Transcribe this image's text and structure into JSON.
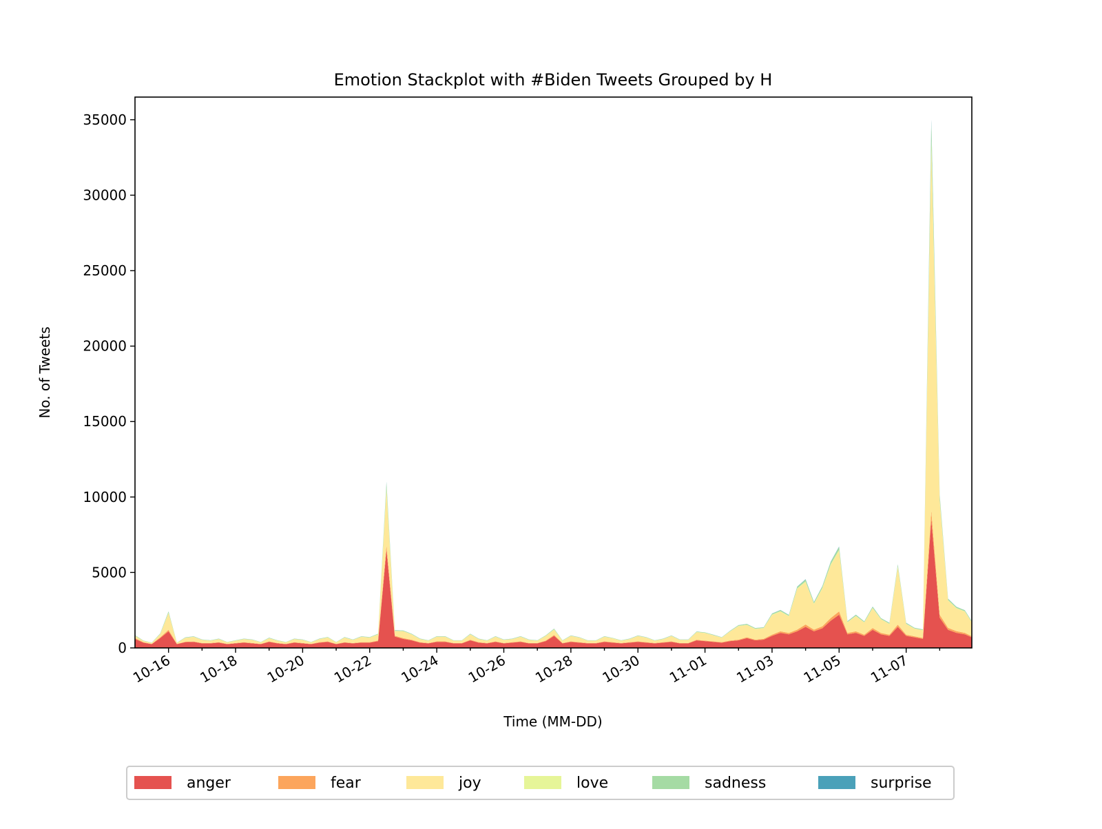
{
  "chart_data": {
    "type": "area",
    "stacked": true,
    "title": "Emotion Stackplot with #Biden Tweets Grouped by H",
    "xlabel": "Time (MM-DD)",
    "ylabel": "No. of Tweets",
    "xlim": [
      "10-15 00:00",
      "11-08 23:00"
    ],
    "ylim": [
      0,
      36500
    ],
    "grid": false,
    "legend_position": "bottom",
    "x_ticks": [
      "10-16",
      "10-18",
      "10-20",
      "10-22",
      "10-24",
      "10-26",
      "10-28",
      "10-30",
      "11-01",
      "11-03",
      "11-05",
      "11-07"
    ],
    "y_ticks": [
      0,
      5000,
      10000,
      15000,
      20000,
      25000,
      30000,
      35000
    ],
    "y_tick_labels": [
      "0",
      "5000",
      "10000",
      "15000",
      "20000",
      "25000",
      "30000",
      "35000"
    ],
    "x": [
      "10-15 00:00",
      "10-15 06:00",
      "10-15 12:00",
      "10-15 18:00",
      "10-16 00:00",
      "10-16 06:00",
      "10-16 12:00",
      "10-16 18:00",
      "10-17 00:00",
      "10-17 06:00",
      "10-17 12:00",
      "10-17 18:00",
      "10-18 00:00",
      "10-18 06:00",
      "10-18 12:00",
      "10-18 18:00",
      "10-19 00:00",
      "10-19 06:00",
      "10-19 12:00",
      "10-19 18:00",
      "10-20 00:00",
      "10-20 06:00",
      "10-20 12:00",
      "10-20 18:00",
      "10-21 00:00",
      "10-21 06:00",
      "10-21 12:00",
      "10-21 18:00",
      "10-22 00:00",
      "10-22 06:00",
      "10-22 12:00",
      "10-22 18:00",
      "10-23 00:00",
      "10-23 06:00",
      "10-23 12:00",
      "10-23 18:00",
      "10-24 00:00",
      "10-24 06:00",
      "10-24 12:00",
      "10-24 18:00",
      "10-25 00:00",
      "10-25 06:00",
      "10-25 12:00",
      "10-25 18:00",
      "10-26 00:00",
      "10-26 06:00",
      "10-26 12:00",
      "10-26 18:00",
      "10-27 00:00",
      "10-27 06:00",
      "10-27 12:00",
      "10-27 18:00",
      "10-28 00:00",
      "10-28 06:00",
      "10-28 12:00",
      "10-28 18:00",
      "10-29 00:00",
      "10-29 06:00",
      "10-29 12:00",
      "10-29 18:00",
      "10-30 00:00",
      "10-30 06:00",
      "10-30 12:00",
      "10-30 18:00",
      "10-31 00:00",
      "10-31 06:00",
      "10-31 12:00",
      "10-31 18:00",
      "11-01 00:00",
      "11-01 06:00",
      "11-01 12:00",
      "11-01 18:00",
      "11-02 00:00",
      "11-02 06:00",
      "11-02 12:00",
      "11-02 18:00",
      "11-03 00:00",
      "11-03 06:00",
      "11-03 12:00",
      "11-03 18:00",
      "11-04 00:00",
      "11-04 06:00",
      "11-04 12:00",
      "11-04 18:00",
      "11-05 00:00",
      "11-05 06:00",
      "11-05 12:00",
      "11-05 18:00",
      "11-06 00:00",
      "11-06 06:00",
      "11-06 12:00",
      "11-06 18:00",
      "11-07 00:00",
      "11-07 06:00",
      "11-07 12:00",
      "11-07 18:00",
      "11-08 00:00",
      "11-08 06:00",
      "11-08 12:00",
      "11-08 18:00",
      "11-08 23:00"
    ],
    "series": [
      {
        "name": "anger",
        "color": "#e5524f",
        "values": [
          600,
          350,
          250,
          650,
          1100,
          250,
          380,
          400,
          300,
          300,
          350,
          250,
          300,
          350,
          300,
          250,
          400,
          300,
          250,
          350,
          300,
          250,
          350,
          400,
          250,
          350,
          300,
          350,
          350,
          450,
          6500,
          750,
          600,
          500,
          350,
          300,
          400,
          400,
          300,
          300,
          500,
          350,
          300,
          400,
          300,
          350,
          400,
          300,
          300,
          450,
          800,
          300,
          400,
          350,
          300,
          300,
          400,
          350,
          300,
          350,
          400,
          350,
          300,
          350,
          400,
          300,
          300,
          500,
          450,
          400,
          350,
          450,
          500,
          650,
          500,
          550,
          800,
          1000,
          900,
          1100,
          1400,
          1100,
          1300,
          1800,
          2200,
          900,
          1000,
          800,
          1200,
          900,
          800,
          1400,
          800,
          700,
          600,
          8500,
          2000,
          1200,
          1000,
          900,
          700
        ]
      },
      {
        "name": "fear",
        "color": "#fca55c",
        "values": [
          50,
          30,
          20,
          50,
          100,
          20,
          30,
          30,
          25,
          25,
          30,
          20,
          25,
          30,
          25,
          20,
          35,
          25,
          20,
          30,
          25,
          20,
          30,
          35,
          20,
          30,
          25,
          30,
          30,
          40,
          300,
          60,
          50,
          40,
          30,
          25,
          35,
          35,
          25,
          25,
          40,
          30,
          25,
          35,
          25,
          30,
          35,
          25,
          25,
          35,
          60,
          25,
          35,
          30,
          25,
          25,
          35,
          30,
          25,
          30,
          35,
          30,
          25,
          30,
          35,
          25,
          25,
          40,
          35,
          35,
          30,
          40,
          45,
          60,
          50,
          55,
          80,
          100,
          90,
          110,
          150,
          110,
          130,
          180,
          220,
          90,
          100,
          80,
          120,
          90,
          80,
          140,
          80,
          70,
          60,
          600,
          200,
          130,
          110,
          100,
          80
        ]
      },
      {
        "name": "joy",
        "color": "#fee899",
        "values": [
          150,
          80,
          60,
          200,
          1100,
          60,
          250,
          300,
          200,
          150,
          200,
          100,
          150,
          200,
          200,
          100,
          200,
          150,
          100,
          200,
          200,
          100,
          200,
          250,
          100,
          300,
          200,
          350,
          300,
          400,
          3600,
          300,
          450,
          350,
          200,
          150,
          300,
          300,
          150,
          150,
          350,
          200,
          150,
          300,
          200,
          200,
          300,
          200,
          150,
          300,
          350,
          150,
          350,
          300,
          150,
          150,
          300,
          250,
          150,
          200,
          350,
          300,
          150,
          200,
          350,
          200,
          200,
          500,
          500,
          400,
          300,
          600,
          900,
          800,
          700,
          700,
          1300,
          1300,
          1100,
          2700,
          2800,
          1700,
          2500,
          3500,
          4000,
          700,
          1000,
          800,
          1300,
          900,
          700,
          3800,
          700,
          500,
          500,
          24000,
          7500,
          1800,
          1500,
          1400,
          900
        ]
      },
      {
        "name": "love",
        "color": "#e6f598",
        "values": [
          15,
          10,
          8,
          15,
          30,
          8,
          12,
          12,
          10,
          10,
          10,
          8,
          10,
          10,
          10,
          8,
          12,
          10,
          8,
          10,
          10,
          8,
          10,
          12,
          8,
          10,
          10,
          12,
          12,
          15,
          250,
          20,
          18,
          15,
          12,
          10,
          12,
          12,
          10,
          10,
          15,
          10,
          10,
          12,
          10,
          10,
          12,
          10,
          10,
          15,
          20,
          10,
          12,
          10,
          10,
          10,
          12,
          10,
          10,
          10,
          12,
          10,
          10,
          10,
          12,
          10,
          10,
          15,
          15,
          12,
          10,
          15,
          20,
          25,
          20,
          20,
          30,
          35,
          30,
          45,
          60,
          40,
          50,
          70,
          90,
          25,
          30,
          25,
          35,
          25,
          25,
          60,
          25,
          20,
          20,
          500,
          150,
          40,
          35,
          30,
          25
        ]
      },
      {
        "name": "sadness",
        "color": "#a5dba4",
        "values": [
          30,
          20,
          15,
          30,
          80,
          15,
          25,
          25,
          20,
          20,
          20,
          15,
          20,
          20,
          20,
          15,
          25,
          20,
          15,
          20,
          20,
          15,
          20,
          25,
          15,
          25,
          20,
          25,
          25,
          30,
          300,
          40,
          35,
          30,
          25,
          20,
          25,
          25,
          20,
          20,
          30,
          20,
          20,
          25,
          20,
          20,
          25,
          20,
          20,
          30,
          40,
          20,
          25,
          20,
          20,
          20,
          25,
          20,
          20,
          20,
          25,
          20,
          20,
          20,
          25,
          20,
          20,
          30,
          30,
          25,
          20,
          30,
          40,
          50,
          40,
          40,
          60,
          70,
          60,
          90,
          120,
          80,
          100,
          140,
          180,
          50,
          60,
          50,
          70,
          50,
          50,
          120,
          50,
          40,
          40,
          1200,
          250,
          80,
          70,
          60,
          50
        ]
      },
      {
        "name": "surprise",
        "color": "#4aa1b9",
        "values": [
          5,
          3,
          2,
          5,
          10,
          2,
          4,
          4,
          3,
          3,
          3,
          2,
          3,
          3,
          3,
          2,
          4,
          3,
          2,
          3,
          3,
          2,
          3,
          4,
          2,
          3,
          3,
          4,
          4,
          5,
          50,
          6,
          5,
          5,
          4,
          3,
          4,
          4,
          3,
          3,
          5,
          3,
          3,
          4,
          3,
          3,
          4,
          3,
          3,
          5,
          6,
          3,
          4,
          3,
          3,
          3,
          4,
          3,
          3,
          3,
          4,
          3,
          3,
          3,
          4,
          3,
          3,
          5,
          5,
          4,
          3,
          5,
          6,
          8,
          6,
          6,
          10,
          12,
          10,
          15,
          20,
          14,
          16,
          22,
          28,
          8,
          10,
          8,
          12,
          8,
          8,
          20,
          8,
          6,
          6,
          200,
          40,
          12,
          10,
          9,
          8
        ]
      }
    ]
  }
}
